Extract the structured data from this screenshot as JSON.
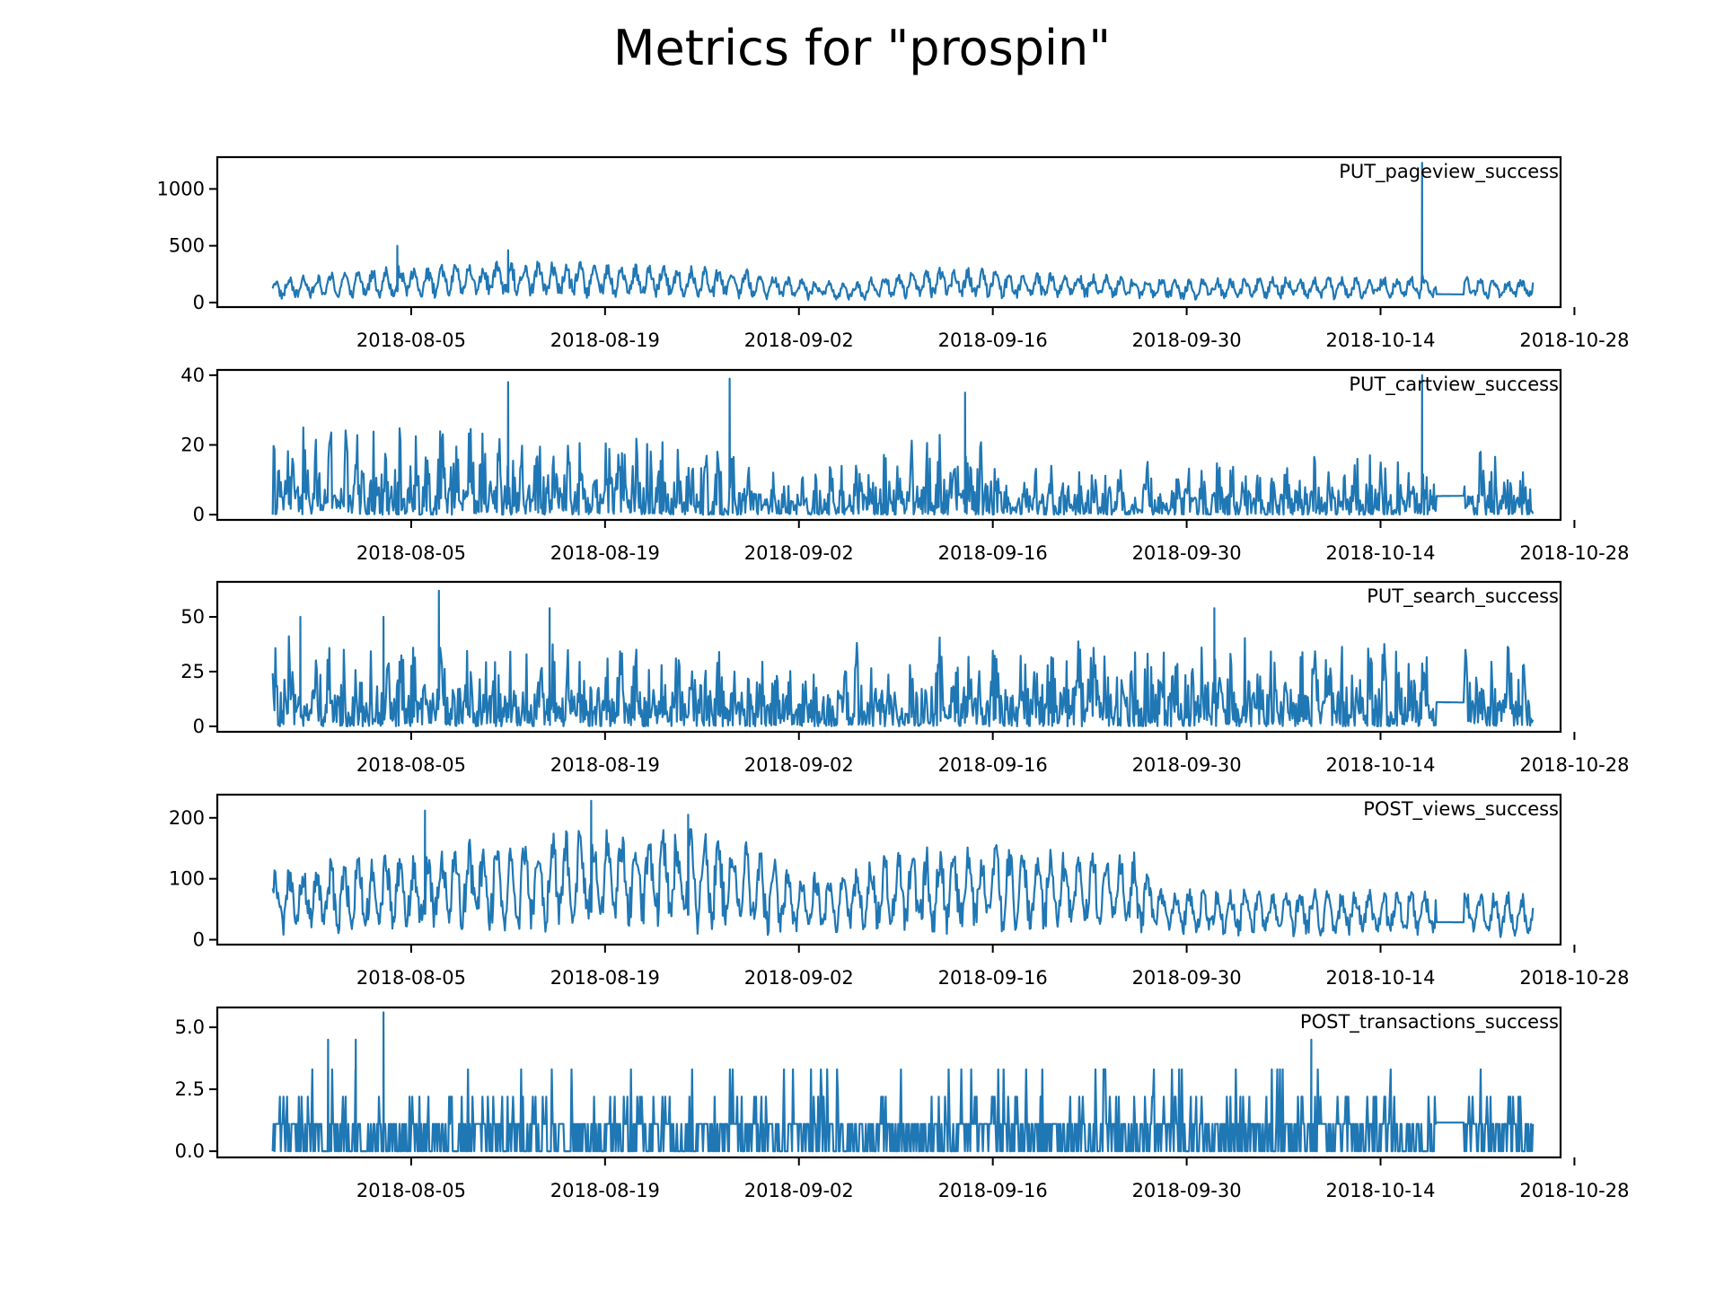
{
  "chart_data": {
    "type": "line",
    "title": "Metrics for \"prospin\"",
    "x_range": [
      "2018-07-22",
      "2018-10-27"
    ],
    "x_ticks": [
      "2018-08-05",
      "2018-08-19",
      "2018-09-02",
      "2018-09-16",
      "2018-09-30",
      "2018-10-14",
      "2018-10-28"
    ],
    "data_start": "2018-07-26",
    "data_end": "2018-10-25",
    "gap": [
      "2018-10-18",
      "2018-10-20"
    ],
    "color": "#1f77b4",
    "panels": [
      {
        "name": "PUT_pageview_success",
        "ylim": [
          -40,
          1280
        ],
        "yticks": [
          0,
          500,
          1000
        ],
        "ytick_labels": [
          "0",
          "500",
          "1000"
        ],
        "min": 0,
        "max": 1230,
        "levels": [
          {
            "date": "2018-07-26",
            "value": 220
          },
          {
            "date": "2018-08-03",
            "value": 320
          },
          {
            "date": "2018-08-14",
            "value": 380
          },
          {
            "date": "2018-08-28",
            "value": 320
          },
          {
            "date": "2018-09-05",
            "value": 180
          },
          {
            "date": "2018-09-12",
            "value": 320
          },
          {
            "date": "2018-09-30",
            "value": 220
          },
          {
            "date": "2018-10-17",
            "value": 250
          },
          {
            "date": "2018-10-25",
            "value": 220
          }
        ],
        "spikes": [
          {
            "date": "2018-08-04",
            "value": 500
          },
          {
            "date": "2018-08-12",
            "value": 460
          },
          {
            "date": "2018-10-17",
            "value": 1230
          }
        ]
      },
      {
        "name": "PUT_cartview_success",
        "ylim": [
          -1.5,
          41.5
        ],
        "yticks": [
          0,
          20,
          40
        ],
        "ytick_labels": [
          "0",
          "20",
          "40"
        ],
        "min": 0,
        "max": 40,
        "levels": [
          {
            "date": "2018-07-26",
            "value": 22
          },
          {
            "date": "2018-08-20",
            "value": 22
          },
          {
            "date": "2018-09-03",
            "value": 10
          },
          {
            "date": "2018-09-12",
            "value": 22
          },
          {
            "date": "2018-09-20",
            "value": 12
          },
          {
            "date": "2018-10-25",
            "value": 16
          }
        ],
        "spikes": [
          {
            "date": "2018-08-12",
            "value": 38
          },
          {
            "date": "2018-08-28",
            "value": 39
          },
          {
            "date": "2018-09-14",
            "value": 35
          },
          {
            "date": "2018-10-17",
            "value": 40
          }
        ]
      },
      {
        "name": "PUT_search_success",
        "ylim": [
          -2.5,
          66
        ],
        "yticks": [
          0,
          25,
          50
        ],
        "ytick_labels": [
          "0",
          "25",
          "50"
        ],
        "min": 0,
        "max": 62,
        "levels": [
          {
            "date": "2018-07-26",
            "value": 35
          },
          {
            "date": "2018-09-01",
            "value": 30
          },
          {
            "date": "2018-09-20",
            "value": 38
          },
          {
            "date": "2018-10-25",
            "value": 30
          }
        ],
        "spikes": [
          {
            "date": "2018-07-28",
            "value": 50
          },
          {
            "date": "2018-08-03",
            "value": 50
          },
          {
            "date": "2018-08-07",
            "value": 62
          },
          {
            "date": "2018-08-15",
            "value": 54
          },
          {
            "date": "2018-10-02",
            "value": 54
          }
        ]
      },
      {
        "name": "POST_views_success",
        "ylim": [
          -8,
          238
        ],
        "yticks": [
          0,
          100,
          200
        ],
        "ytick_labels": [
          "0",
          "100",
          "200"
        ],
        "min": 0,
        "max": 228,
        "levels": [
          {
            "date": "2018-07-26",
            "value": 120
          },
          {
            "date": "2018-08-07",
            "value": 160
          },
          {
            "date": "2018-08-19",
            "value": 190
          },
          {
            "date": "2018-08-28",
            "value": 185
          },
          {
            "date": "2018-09-02",
            "value": 110
          },
          {
            "date": "2018-09-12",
            "value": 160
          },
          {
            "date": "2018-09-26",
            "value": 150
          },
          {
            "date": "2018-09-28",
            "value": 90
          },
          {
            "date": "2018-10-25",
            "value": 80
          }
        ],
        "spikes": [
          {
            "date": "2018-08-06",
            "value": 212
          },
          {
            "date": "2018-08-18",
            "value": 228
          },
          {
            "date": "2018-08-25",
            "value": 205
          }
        ]
      },
      {
        "name": "POST_transactions_success",
        "ylim": [
          -0.25,
          5.8
        ],
        "yticks": [
          0.0,
          2.5,
          5.0
        ],
        "ytick_labels": [
          "0.0",
          "2.5",
          "5.0"
        ],
        "min": 0,
        "max": 5.6,
        "levels": [
          {
            "date": "2018-07-26",
            "value": 3.3
          },
          {
            "date": "2018-10-25",
            "value": 3.3
          }
        ],
        "spikes": [
          {
            "date": "2018-08-03",
            "value": 5.6
          },
          {
            "date": "2018-07-30",
            "value": 4.5
          },
          {
            "date": "2018-08-01",
            "value": 4.5
          },
          {
            "date": "2018-10-09",
            "value": 4.5
          }
        ]
      }
    ]
  }
}
